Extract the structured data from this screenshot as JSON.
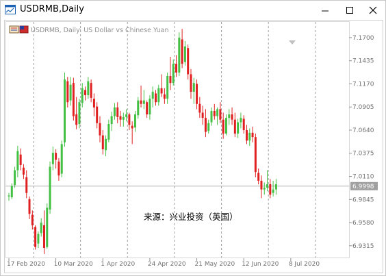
{
  "window": {
    "title": "USDRMB,Daily"
  },
  "chart_header": {
    "text": "USDRMB, Daily:  US Dollar vs Chinese Yuan"
  },
  "current_price": "6.9998",
  "watermark": "来源：兴业投资（英国）",
  "colors": {
    "up": "#43c043",
    "down": "#e02020",
    "current_price_bg": "#a0a0a0",
    "grid": "#a0a0a0"
  },
  "chart_data": {
    "type": "candlestick",
    "ylim": [
      6.918,
      7.188
    ],
    "y_ticks": [
      7.17,
      7.1435,
      7.117,
      7.0905,
      7.064,
      7.0375,
      7.011,
      6.9845,
      6.958,
      6.9315
    ],
    "y_tick_labels": [
      "7.1700",
      "7.1435",
      "7.1170",
      "7.0905",
      "7.0640",
      "7.0375",
      "7.0110",
      "6.9845",
      "6.9580",
      "6.9315"
    ],
    "x_labels": [
      {
        "index": 0,
        "label": "17 Feb 2020"
      },
      {
        "index": 16,
        "label": "10 Mar 2020"
      },
      {
        "index": 32,
        "label": "1 Apr 2020"
      },
      {
        "index": 48,
        "label": "24 Apr 2020"
      },
      {
        "index": 64,
        "label": "21 May 2020"
      },
      {
        "index": 80,
        "label": "12 Jun 2020"
      },
      {
        "index": 96,
        "label": "8 Jul 2020"
      }
    ],
    "candles": [
      {
        "o": 6.988,
        "h": 6.992,
        "l": 6.983,
        "c": 6.989
      },
      {
        "o": 6.987,
        "h": 7.003,
        "l": 6.985,
        "c": 7.0
      },
      {
        "o": 7.001,
        "h": 7.022,
        "l": 6.998,
        "c": 7.018
      },
      {
        "o": 7.018,
        "h": 7.046,
        "l": 7.01,
        "c": 7.04
      },
      {
        "o": 7.036,
        "h": 7.043,
        "l": 7.018,
        "c": 7.024
      },
      {
        "o": 7.021,
        "h": 7.025,
        "l": 7.008,
        "c": 7.013
      },
      {
        "o": 7.01,
        "h": 7.018,
        "l": 6.986,
        "c": 6.992
      },
      {
        "o": 6.985,
        "h": 6.988,
        "l": 6.962,
        "c": 6.968
      },
      {
        "o": 6.967,
        "h": 6.972,
        "l": 6.95,
        "c": 6.955
      },
      {
        "o": 6.953,
        "h": 6.955,
        "l": 6.927,
        "c": 6.93
      },
      {
        "o": 6.934,
        "h": 6.948,
        "l": 6.929,
        "c": 6.945
      },
      {
        "o": 6.946,
        "h": 6.963,
        "l": 6.942,
        "c": 6.958
      },
      {
        "o": 6.955,
        "h": 6.972,
        "l": 6.922,
        "c": 6.929
      },
      {
        "o": 6.93,
        "h": 6.98,
        "l": 6.928,
        "c": 6.975
      },
      {
        "o": 6.973,
        "h": 7.028,
        "l": 6.968,
        "c": 7.022
      },
      {
        "o": 7.025,
        "h": 7.045,
        "l": 7.018,
        "c": 7.038
      },
      {
        "o": 7.038,
        "h": 7.042,
        "l": 7.02,
        "c": 7.03
      },
      {
        "o": 7.028,
        "h": 7.032,
        "l": 7.006,
        "c": 7.012
      },
      {
        "o": 7.014,
        "h": 7.052,
        "l": 7.01,
        "c": 7.048
      },
      {
        "o": 7.05,
        "h": 7.13,
        "l": 7.045,
        "c": 7.122
      },
      {
        "o": 7.12,
        "h": 7.125,
        "l": 7.09,
        "c": 7.096
      },
      {
        "o": 7.098,
        "h": 7.125,
        "l": 7.092,
        "c": 7.116
      },
      {
        "o": 7.118,
        "h": 7.124,
        "l": 7.075,
        "c": 7.08
      },
      {
        "o": 7.082,
        "h": 7.102,
        "l": 7.065,
        "c": 7.07
      },
      {
        "o": 7.071,
        "h": 7.1,
        "l": 7.066,
        "c": 7.096
      },
      {
        "o": 7.095,
        "h": 7.118,
        "l": 7.09,
        "c": 7.112
      },
      {
        "o": 7.11,
        "h": 7.114,
        "l": 7.098,
        "c": 7.104
      },
      {
        "o": 7.104,
        "h": 7.125,
        "l": 7.1,
        "c": 7.12
      },
      {
        "o": 7.118,
        "h": 7.122,
        "l": 7.096,
        "c": 7.101
      },
      {
        "o": 7.1,
        "h": 7.106,
        "l": 7.08,
        "c": 7.09
      },
      {
        "o": 7.091,
        "h": 7.096,
        "l": 7.066,
        "c": 7.072
      },
      {
        "o": 7.072,
        "h": 7.08,
        "l": 7.05,
        "c": 7.058
      },
      {
        "o": 7.058,
        "h": 7.064,
        "l": 7.036,
        "c": 7.042
      },
      {
        "o": 7.041,
        "h": 7.058,
        "l": 7.034,
        "c": 7.054
      },
      {
        "o": 7.053,
        "h": 7.076,
        "l": 7.05,
        "c": 7.071
      },
      {
        "o": 7.071,
        "h": 7.085,
        "l": 7.063,
        "c": 7.08
      },
      {
        "o": 7.08,
        "h": 7.095,
        "l": 7.076,
        "c": 7.09
      },
      {
        "o": 7.09,
        "h": 7.096,
        "l": 7.072,
        "c": 7.079
      },
      {
        "o": 7.08,
        "h": 7.086,
        "l": 7.068,
        "c": 7.076
      },
      {
        "o": 7.076,
        "h": 7.084,
        "l": 7.068,
        "c": 7.079
      },
      {
        "o": 7.079,
        "h": 7.088,
        "l": 7.074,
        "c": 7.082
      },
      {
        "o": 7.082,
        "h": 7.084,
        "l": 7.064,
        "c": 7.07
      },
      {
        "o": 7.069,
        "h": 7.074,
        "l": 7.048,
        "c": 7.066
      },
      {
        "o": 7.067,
        "h": 7.086,
        "l": 7.062,
        "c": 7.082
      },
      {
        "o": 7.081,
        "h": 7.102,
        "l": 7.077,
        "c": 7.098
      },
      {
        "o": 7.098,
        "h": 7.115,
        "l": 7.09,
        "c": 7.094
      },
      {
        "o": 7.094,
        "h": 7.11,
        "l": 7.088,
        "c": 7.098
      },
      {
        "o": 7.096,
        "h": 7.098,
        "l": 7.078,
        "c": 7.082
      },
      {
        "o": 7.082,
        "h": 7.104,
        "l": 7.076,
        "c": 7.1
      },
      {
        "o": 7.1,
        "h": 7.114,
        "l": 7.09,
        "c": 7.108
      },
      {
        "o": 7.106,
        "h": 7.11,
        "l": 7.092,
        "c": 7.096
      },
      {
        "o": 7.096,
        "h": 7.116,
        "l": 7.092,
        "c": 7.112
      },
      {
        "o": 7.112,
        "h": 7.128,
        "l": 7.102,
        "c": 7.106
      },
      {
        "o": 7.105,
        "h": 7.112,
        "l": 7.094,
        "c": 7.1
      },
      {
        "o": 7.1,
        "h": 7.13,
        "l": 7.094,
        "c": 7.126
      },
      {
        "o": 7.126,
        "h": 7.148,
        "l": 7.11,
        "c": 7.118
      },
      {
        "o": 7.118,
        "h": 7.145,
        "l": 7.115,
        "c": 7.14
      },
      {
        "o": 7.14,
        "h": 7.15,
        "l": 7.125,
        "c": 7.13
      },
      {
        "o": 7.13,
        "h": 7.176,
        "l": 7.126,
        "c": 7.17
      },
      {
        "o": 7.168,
        "h": 7.18,
        "l": 7.135,
        "c": 7.14
      },
      {
        "o": 7.142,
        "h": 7.166,
        "l": 7.138,
        "c": 7.16
      },
      {
        "o": 7.158,
        "h": 7.162,
        "l": 7.122,
        "c": 7.128
      },
      {
        "o": 7.128,
        "h": 7.134,
        "l": 7.1,
        "c": 7.108
      },
      {
        "o": 7.108,
        "h": 7.124,
        "l": 7.094,
        "c": 7.118
      },
      {
        "o": 7.117,
        "h": 7.122,
        "l": 7.088,
        "c": 7.094
      },
      {
        "o": 7.094,
        "h": 7.102,
        "l": 7.078,
        "c": 7.084
      },
      {
        "o": 7.084,
        "h": 7.092,
        "l": 7.07,
        "c": 7.078
      },
      {
        "o": 7.078,
        "h": 7.088,
        "l": 7.056,
        "c": 7.062
      },
      {
        "o": 7.063,
        "h": 7.076,
        "l": 7.06,
        "c": 7.072
      },
      {
        "o": 7.073,
        "h": 7.09,
        "l": 7.069,
        "c": 7.086
      },
      {
        "o": 7.086,
        "h": 7.094,
        "l": 7.076,
        "c": 7.08
      },
      {
        "o": 7.08,
        "h": 7.09,
        "l": 7.07,
        "c": 7.088
      },
      {
        "o": 7.088,
        "h": 7.096,
        "l": 7.072,
        "c": 7.076
      },
      {
        "o": 7.076,
        "h": 7.084,
        "l": 7.054,
        "c": 7.06
      },
      {
        "o": 7.06,
        "h": 7.082,
        "l": 7.058,
        "c": 7.078
      },
      {
        "o": 7.078,
        "h": 7.088,
        "l": 7.07,
        "c": 7.082
      },
      {
        "o": 7.082,
        "h": 7.09,
        "l": 7.07,
        "c": 7.076
      },
      {
        "o": 7.076,
        "h": 7.084,
        "l": 7.056,
        "c": 7.06
      },
      {
        "o": 7.06,
        "h": 7.077,
        "l": 7.055,
        "c": 7.073
      },
      {
        "o": 7.073,
        "h": 7.084,
        "l": 7.066,
        "c": 7.078
      },
      {
        "o": 7.077,
        "h": 7.081,
        "l": 7.06,
        "c": 7.064
      },
      {
        "o": 7.064,
        "h": 7.07,
        "l": 7.048,
        "c": 7.052
      },
      {
        "o": 7.052,
        "h": 7.066,
        "l": 7.046,
        "c": 7.061
      },
      {
        "o": 7.061,
        "h": 7.068,
        "l": 7.05,
        "c": 7.056
      },
      {
        "o": 7.056,
        "h": 7.06,
        "l": 7.01,
        "c": 7.016
      },
      {
        "o": 7.015,
        "h": 7.02,
        "l": 7.002,
        "c": 7.006
      },
      {
        "o": 7.006,
        "h": 7.012,
        "l": 6.986,
        "c": 6.996
      },
      {
        "o": 6.996,
        "h": 7.004,
        "l": 6.99,
        "c": 6.998
      },
      {
        "o": 6.998,
        "h": 7.018,
        "l": 6.994,
        "c": 7.002
      },
      {
        "o": 7.002,
        "h": 7.008,
        "l": 6.986,
        "c": 6.99
      },
      {
        "o": 6.992,
        "h": 7.006,
        "l": 6.988,
        "c": 6.996
      },
      {
        "o": 6.996,
        "h": 7.008,
        "l": 6.99,
        "c": 7.002
      }
    ]
  }
}
